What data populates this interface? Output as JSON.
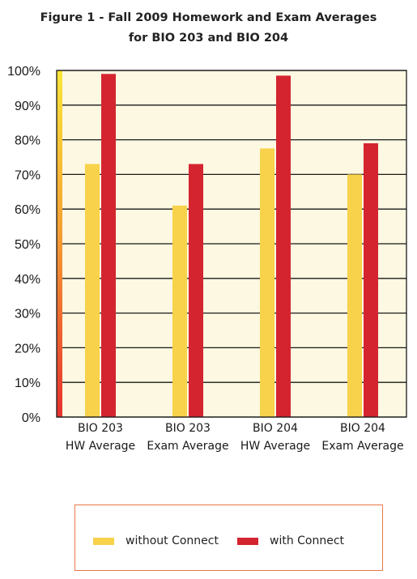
{
  "chart_data": {
    "type": "bar",
    "title": [
      "Figure 1 - Fall 2009 Homework and Exam Averages",
      "for BIO 203 and BIO 204"
    ],
    "categories": [
      [
        "BIO 203",
        "HW Average"
      ],
      [
        "BIO 203",
        "Exam Average"
      ],
      [
        "BIO 204",
        "HW Average"
      ],
      [
        "BIO 204",
        "Exam Average"
      ]
    ],
    "series": [
      {
        "name": "without Connect",
        "color": "#f7d24a",
        "values": [
          0.73,
          0.61,
          0.775,
          0.7
        ]
      },
      {
        "name": "with Connect",
        "color": "#d42430",
        "values": [
          0.99,
          0.73,
          0.985,
          0.79
        ]
      }
    ],
    "yticks": [
      "0%",
      "10%",
      "20%",
      "30%",
      "40%",
      "50%",
      "60%",
      "70%",
      "80%",
      "90%",
      "100%"
    ],
    "ylim": [
      0,
      1
    ],
    "grid": true,
    "background": "#fdf8e1",
    "legend_position": "bottom"
  }
}
